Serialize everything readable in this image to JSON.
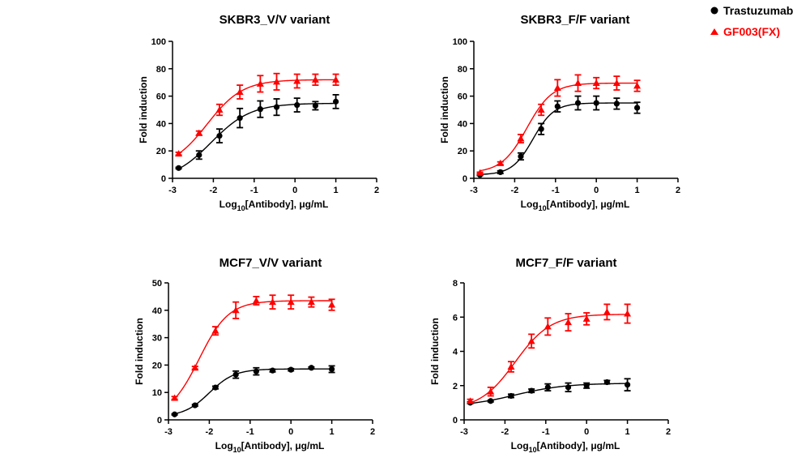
{
  "legend": [
    {
      "label": "Trastuzumab",
      "color": "#000000",
      "marker": "circle"
    },
    {
      "label": "GF003(FX)",
      "color": "#ff0000",
      "marker": "triangle"
    }
  ],
  "chart_data": [
    {
      "type": "scatter",
      "title": "SKBR3_V/V variant",
      "xlabel_prefix": "Log",
      "xlabel_sub": "10",
      "xlabel_suffix": "[Antibody], μg/mL",
      "ylabel": "Fold induction",
      "xlim": [
        -3,
        2
      ],
      "ylim": [
        0,
        100
      ],
      "xticks": [
        -3,
        -2,
        -1,
        0,
        1,
        2
      ],
      "yticks": [
        0,
        20,
        40,
        60,
        80,
        100
      ],
      "grid": false,
      "legend_position": "top-right",
      "x": [
        -2.85,
        -2.35,
        -1.85,
        -1.35,
        -0.85,
        -0.45,
        0.05,
        0.5,
        1.0
      ],
      "series": [
        {
          "name": "Trastuzumab",
          "color": "#000000",
          "marker": "circle",
          "values": [
            7.5,
            17,
            31,
            44,
            50.5,
            52,
            53.5,
            53,
            56
          ],
          "errors": [
            0.5,
            3,
            5,
            7,
            6,
            6,
            5,
            3,
            5
          ]
        },
        {
          "name": "GF003(FX)",
          "color": "#ff0000",
          "marker": "triangle",
          "values": [
            18,
            33,
            50,
            63,
            69,
            70.5,
            71,
            72,
            72
          ],
          "errors": [
            1,
            1.5,
            4,
            5,
            6,
            6,
            5,
            4,
            4
          ]
        }
      ]
    },
    {
      "type": "scatter",
      "title": "SKBR3_F/F variant",
      "xlabel_prefix": "Log",
      "xlabel_sub": "10",
      "xlabel_suffix": "[Antibody], μg/mL",
      "ylabel": "Fold induction",
      "xlim": [
        -3,
        2
      ],
      "ylim": [
        0,
        100
      ],
      "xticks": [
        -3,
        -2,
        -1,
        0,
        1,
        2
      ],
      "yticks": [
        0,
        20,
        40,
        60,
        80,
        100
      ],
      "grid": false,
      "legend_position": "top-right",
      "x": [
        -2.85,
        -2.35,
        -1.85,
        -1.35,
        -0.95,
        -0.45,
        0.0,
        0.5,
        1.0
      ],
      "series": [
        {
          "name": "Trastuzumab",
          "color": "#000000",
          "marker": "circle",
          "values": [
            2.5,
            4.5,
            16,
            36,
            52.5,
            55,
            55,
            54.5,
            51.5
          ],
          "errors": [
            0.5,
            1,
            2.5,
            4,
            4,
            5,
            5,
            4,
            4
          ]
        },
        {
          "name": "GF003(FX)",
          "color": "#ff0000",
          "marker": "triangle",
          "values": [
            4,
            11,
            29,
            50,
            66,
            69.5,
            69.5,
            69.5,
            67.5
          ],
          "errors": [
            0.5,
            1,
            3,
            4,
            6,
            6,
            4,
            5,
            4
          ]
        }
      ]
    },
    {
      "type": "scatter",
      "title": "MCF7_V/V variant",
      "xlabel_prefix": "Log",
      "xlabel_sub": "10",
      "xlabel_suffix": "[Antibody], μg/mL",
      "ylabel": "Fold induction",
      "xlim": [
        -3,
        2
      ],
      "ylim": [
        0,
        50
      ],
      "xticks": [
        -3,
        -2,
        -1,
        0,
        1,
        2
      ],
      "yticks": [
        0,
        10,
        20,
        30,
        40,
        50
      ],
      "grid": false,
      "legend_position": "top-right",
      "x": [
        -2.85,
        -2.35,
        -1.85,
        -1.35,
        -0.85,
        -0.45,
        0.0,
        0.5,
        1.0
      ],
      "series": [
        {
          "name": "Trastuzumab",
          "color": "#000000",
          "marker": "circle",
          "values": [
            2,
            5.3,
            11.8,
            16.5,
            17.7,
            18,
            18.3,
            19,
            18.5
          ],
          "errors": [
            0.2,
            0.3,
            0.5,
            1.3,
            1.3,
            0.5,
            0.4,
            0.3,
            1.2
          ]
        },
        {
          "name": "GF003(FX)",
          "color": "#ff0000",
          "marker": "triangle",
          "values": [
            8,
            19,
            32.5,
            40,
            43.5,
            43,
            43,
            43,
            42
          ],
          "errors": [
            0.5,
            0.5,
            1.5,
            3,
            1.5,
            2.5,
            2.5,
            1.8,
            2
          ]
        }
      ]
    },
    {
      "type": "scatter",
      "title": "MCF7_F/F variant",
      "xlabel_prefix": "Log",
      "xlabel_sub": "10",
      "xlabel_suffix": "[Antibody], μg/mL",
      "ylabel": "Fold induction",
      "xlim": [
        -3,
        2
      ],
      "ylim": [
        0,
        8
      ],
      "xticks": [
        -3,
        -2,
        -1,
        0,
        1,
        2
      ],
      "yticks": [
        0,
        2,
        4,
        6,
        8
      ],
      "grid": false,
      "legend_position": "top-right",
      "x": [
        -2.85,
        -2.35,
        -1.85,
        -1.35,
        -0.95,
        -0.45,
        0.0,
        0.5,
        1.0
      ],
      "series": [
        {
          "name": "Trastuzumab",
          "color": "#000000",
          "marker": "circle",
          "values": [
            1.0,
            1.1,
            1.4,
            1.7,
            1.9,
            1.9,
            2.0,
            2.2,
            2.05
          ],
          "errors": [
            0.05,
            0.05,
            0.1,
            0.1,
            0.2,
            0.25,
            0.15,
            0.1,
            0.35
          ]
        },
        {
          "name": "GF003(FX)",
          "color": "#ff0000",
          "marker": "triangle",
          "values": [
            1.1,
            1.65,
            3.1,
            4.6,
            5.45,
            5.7,
            5.9,
            6.3,
            6.2
          ],
          "errors": [
            0.1,
            0.25,
            0.3,
            0.4,
            0.5,
            0.5,
            0.35,
            0.45,
            0.55
          ]
        }
      ]
    }
  ]
}
